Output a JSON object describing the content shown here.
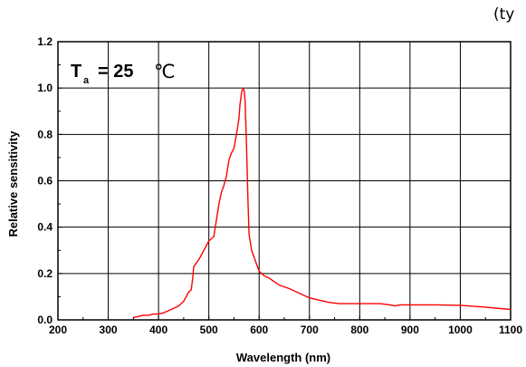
{
  "corner_text": "(ty",
  "chart_data": {
    "type": "line",
    "title": "",
    "xlabel": "Wavelength (nm)",
    "ylabel": "Relative sensitivity",
    "xlim": [
      200,
      1100
    ],
    "ylim": [
      0.0,
      1.2
    ],
    "xticks": [
      "200",
      "300",
      "400",
      "500",
      "600",
      "700",
      "800",
      "900",
      "1000",
      "1100"
    ],
    "yticks": [
      "0.0",
      "0.2",
      "0.4",
      "0.6",
      "0.8",
      "1.0",
      "1.2"
    ],
    "grid": true,
    "legend": "none",
    "annotation": {
      "symbol": "T",
      "subscript": "a",
      "text": "= 25",
      "unit": "℃"
    },
    "series": [
      {
        "color": "#ff0000",
        "x": [
          350,
          360,
          370,
          380,
          390,
          400,
          410,
          420,
          430,
          440,
          450,
          455,
          460,
          465,
          468,
          470,
          480,
          490,
          500,
          505,
          510,
          515,
          520,
          525,
          530,
          535,
          540,
          545,
          550,
          555,
          560,
          562,
          565,
          568,
          570,
          572,
          575,
          578,
          580,
          585,
          590,
          595,
          600,
          610,
          620,
          630,
          640,
          660,
          680,
          700,
          720,
          740,
          760,
          780,
          800,
          820,
          840,
          860,
          870,
          880,
          900,
          950,
          1000,
          1050,
          1100
        ],
        "y": [
          0.01,
          0.015,
          0.02,
          0.02,
          0.025,
          0.025,
          0.03,
          0.04,
          0.05,
          0.06,
          0.08,
          0.1,
          0.12,
          0.13,
          0.18,
          0.23,
          0.26,
          0.3,
          0.34,
          0.35,
          0.36,
          0.43,
          0.5,
          0.55,
          0.58,
          0.62,
          0.69,
          0.72,
          0.74,
          0.8,
          0.87,
          0.93,
          0.98,
          1.0,
          0.99,
          0.95,
          0.75,
          0.5,
          0.37,
          0.3,
          0.27,
          0.24,
          0.21,
          0.19,
          0.18,
          0.165,
          0.15,
          0.135,
          0.115,
          0.095,
          0.085,
          0.075,
          0.07,
          0.07,
          0.07,
          0.07,
          0.07,
          0.065,
          0.06,
          0.065,
          0.065,
          0.065,
          0.063,
          0.055,
          0.045
        ]
      }
    ]
  }
}
